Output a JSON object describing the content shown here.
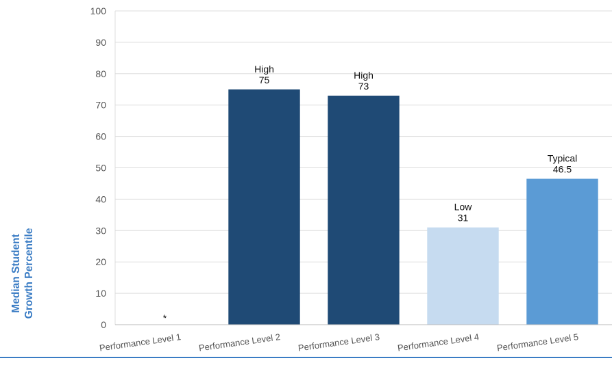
{
  "chart_data": {
    "type": "bar",
    "categories": [
      "Performance Level 1",
      "Performance Level 2",
      "Performance Level 3",
      "Performance Level 4",
      "Performance Level 5"
    ],
    "values": [
      null,
      75,
      73,
      31,
      46.5
    ],
    "value_labels": [
      "",
      "75",
      "73",
      "31",
      "46.5"
    ],
    "bar_labels": [
      "*",
      "High",
      "High",
      "Low",
      "Typical"
    ],
    "bar_colors": [
      "#1f4a75",
      "#1f4a75",
      "#1f4a75",
      "#c6dbf0",
      "#5b9bd5"
    ],
    "ylabel": "Median Student\nGrowth Percentile",
    "xlabel": "",
    "ylim": [
      0,
      100
    ],
    "yticks": [
      0,
      10,
      20,
      30,
      40,
      50,
      60,
      70,
      80,
      90,
      100
    ],
    "grid": true,
    "legend": "none",
    "colors": {
      "accent": "#3a7cc4",
      "grid": "#dddddd",
      "tick_text": "#555555",
      "label_text": "#111111"
    }
  }
}
